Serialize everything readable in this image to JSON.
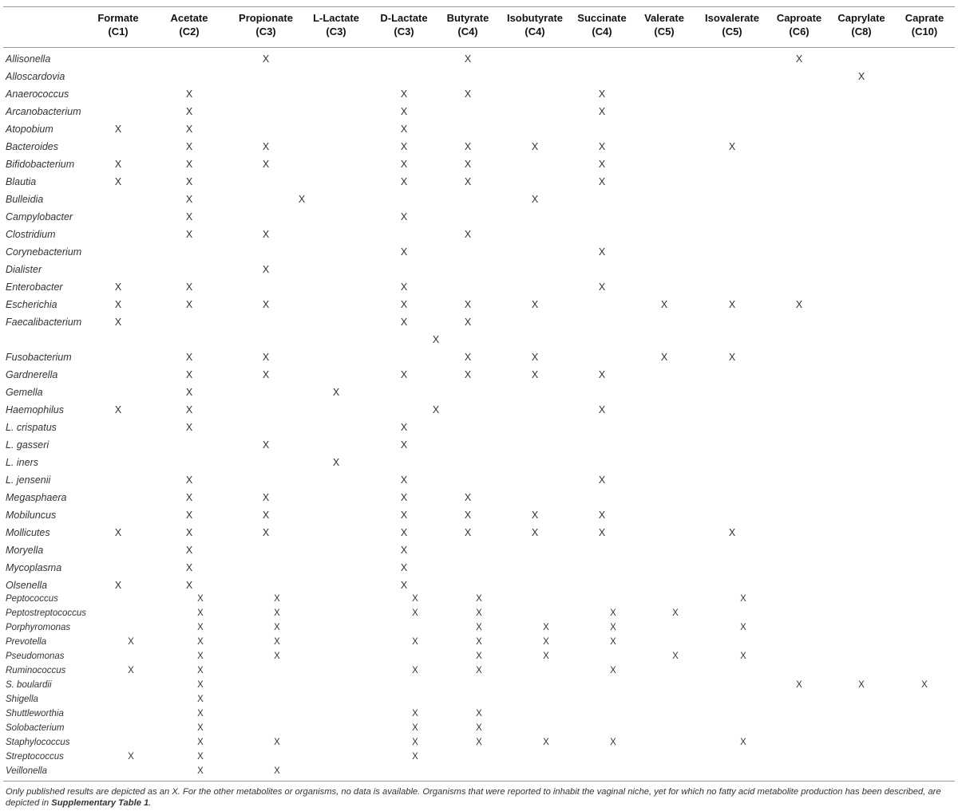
{
  "table": {
    "columns": [
      {
        "name": "Formate",
        "carbon": "(C1)"
      },
      {
        "name": "Acetate",
        "carbon": "(C2)"
      },
      {
        "name": "Propionate",
        "carbon": "(C3)"
      },
      {
        "name": "L-Lactate",
        "carbon": "(C3)"
      },
      {
        "name": "D-Lactate",
        "carbon": "(C3)"
      },
      {
        "name": "Butyrate",
        "carbon": "(C4)"
      },
      {
        "name": "Isobutyrate",
        "carbon": "(C4)"
      },
      {
        "name": "Succinate",
        "carbon": "(C4)"
      },
      {
        "name": "Valerate",
        "carbon": "(C5)"
      },
      {
        "name": "Isovalerate",
        "carbon": "(C5)"
      },
      {
        "name": "Caproate",
        "carbon": "(C6)"
      },
      {
        "name": "Caprylate",
        "carbon": "(C8)"
      },
      {
        "name": "Caprate",
        "carbon": "(C10)"
      }
    ],
    "mark_symbol": "X",
    "rows": [
      {
        "organism": "Allisonella",
        "marks": [
          2,
          5,
          10
        ]
      },
      {
        "organism": "Alloscardovia",
        "marks": [
          11
        ]
      },
      {
        "organism": "Anaerococcus",
        "marks": [
          1,
          4,
          5,
          7
        ]
      },
      {
        "organism": "Arcanobacterium",
        "marks": [
          1,
          4,
          7
        ]
      },
      {
        "organism": "Atopobium",
        "marks": [
          0,
          1,
          4
        ]
      },
      {
        "organism": "Bacteroides",
        "marks": [
          1,
          2,
          4,
          5,
          6,
          7,
          9
        ]
      },
      {
        "organism": "Bifidobacterium",
        "marks": [
          0,
          1,
          2,
          4,
          5,
          7
        ]
      },
      {
        "organism": "Blautia",
        "marks": [
          0,
          1,
          4,
          5,
          7
        ]
      },
      {
        "organism": "Bulleidia",
        "marks": [
          1,
          3,
          6
        ]
      },
      {
        "organism": "Campylobacter",
        "marks": [
          1,
          4
        ]
      },
      {
        "organism": "Clostridium",
        "marks": [
          1,
          2,
          5
        ]
      },
      {
        "organism": "Corynebacterium",
        "marks": [
          4,
          7
        ]
      },
      {
        "organism": "Dialister",
        "marks": [
          2
        ]
      },
      {
        "organism": "Enterobacter",
        "marks": [
          0,
          1,
          4,
          7
        ]
      },
      {
        "organism": "Escherichia",
        "marks": [
          0,
          1,
          2,
          4,
          5,
          6,
          8,
          9,
          10
        ]
      },
      {
        "organism": "Faecalibacterium",
        "marks": [
          0,
          4,
          5
        ]
      },
      {
        "organism": "",
        "marks": [
          4.5
        ]
      },
      {
        "organism": "Fusobacterium",
        "marks": [
          1,
          2,
          5,
          6,
          8,
          9
        ]
      },
      {
        "organism": "Gardnerella",
        "marks": [
          1,
          2,
          4,
          5,
          6,
          7
        ]
      },
      {
        "organism": "Gemella",
        "marks": [
          1,
          3
        ]
      },
      {
        "organism": "Haemophilus",
        "marks": [
          0,
          1,
          4.5,
          7
        ]
      },
      {
        "organism": "L. crispatus",
        "marks": [
          1,
          4
        ]
      },
      {
        "organism": "L. gasseri",
        "marks": [
          2,
          4
        ]
      },
      {
        "organism": "L. iners",
        "marks": [
          3
        ]
      },
      {
        "organism": "L. jensenii",
        "marks": [
          1,
          4,
          7
        ]
      },
      {
        "organism": "Megasphaera",
        "marks": [
          1,
          2,
          4,
          5
        ]
      },
      {
        "organism": "Mobiluncus",
        "marks": [
          1,
          2,
          4,
          5,
          6,
          7
        ]
      },
      {
        "organism": "Mollicutes",
        "marks": [
          0,
          1,
          2,
          4,
          5,
          6,
          7,
          9
        ]
      },
      {
        "organism": "Moryella",
        "marks": [
          1,
          4
        ]
      },
      {
        "organism": "Mycoplasma",
        "marks": [
          1,
          4
        ]
      },
      {
        "organism": "Olsenella",
        "marks": [
          0,
          1,
          4
        ]
      },
      {
        "organism": "Peptococcus",
        "marks": [
          1,
          2,
          4,
          5,
          9
        ]
      },
      {
        "organism": "Peptostreptococcus",
        "marks": [
          1,
          2,
          4,
          5,
          7,
          8
        ]
      },
      {
        "organism": "Porphyromonas",
        "marks": [
          1,
          2,
          5,
          6,
          7,
          9
        ]
      },
      {
        "organism": "Prevotella",
        "marks": [
          0,
          1,
          2,
          4,
          5,
          6,
          7
        ]
      },
      {
        "organism": "Pseudomonas",
        "marks": [
          1,
          2,
          5,
          6,
          8,
          9
        ]
      },
      {
        "organism": "Ruminococcus",
        "marks": [
          0,
          1,
          4,
          5,
          7
        ]
      },
      {
        "organism": "S. boulardii",
        "marks": [
          1,
          10,
          11,
          12
        ]
      },
      {
        "organism": "Shigella",
        "marks": [
          1
        ]
      },
      {
        "organism": "Shuttleworthia",
        "marks": [
          1,
          4,
          5
        ]
      },
      {
        "organism": "Solobacterium",
        "marks": [
          1,
          4,
          5
        ]
      },
      {
        "organism": "Staphylococcus",
        "marks": [
          1,
          2,
          4,
          5,
          6,
          7,
          9
        ]
      },
      {
        "organism": "Streptococcus",
        "marks": [
          0,
          1,
          4
        ]
      },
      {
        "organism": "Veillonella",
        "marks": [
          1,
          2
        ]
      }
    ]
  },
  "footnote": {
    "text_before": "Only published results are depicted as an X. For the other metabolites or organisms, no data is available. Organisms that were reported to inhabit the vaginal niche, yet for which no fatty acid metabolite production has been described, are depicted in ",
    "link_text": "Supplementary Table 1",
    "text_after": "."
  }
}
